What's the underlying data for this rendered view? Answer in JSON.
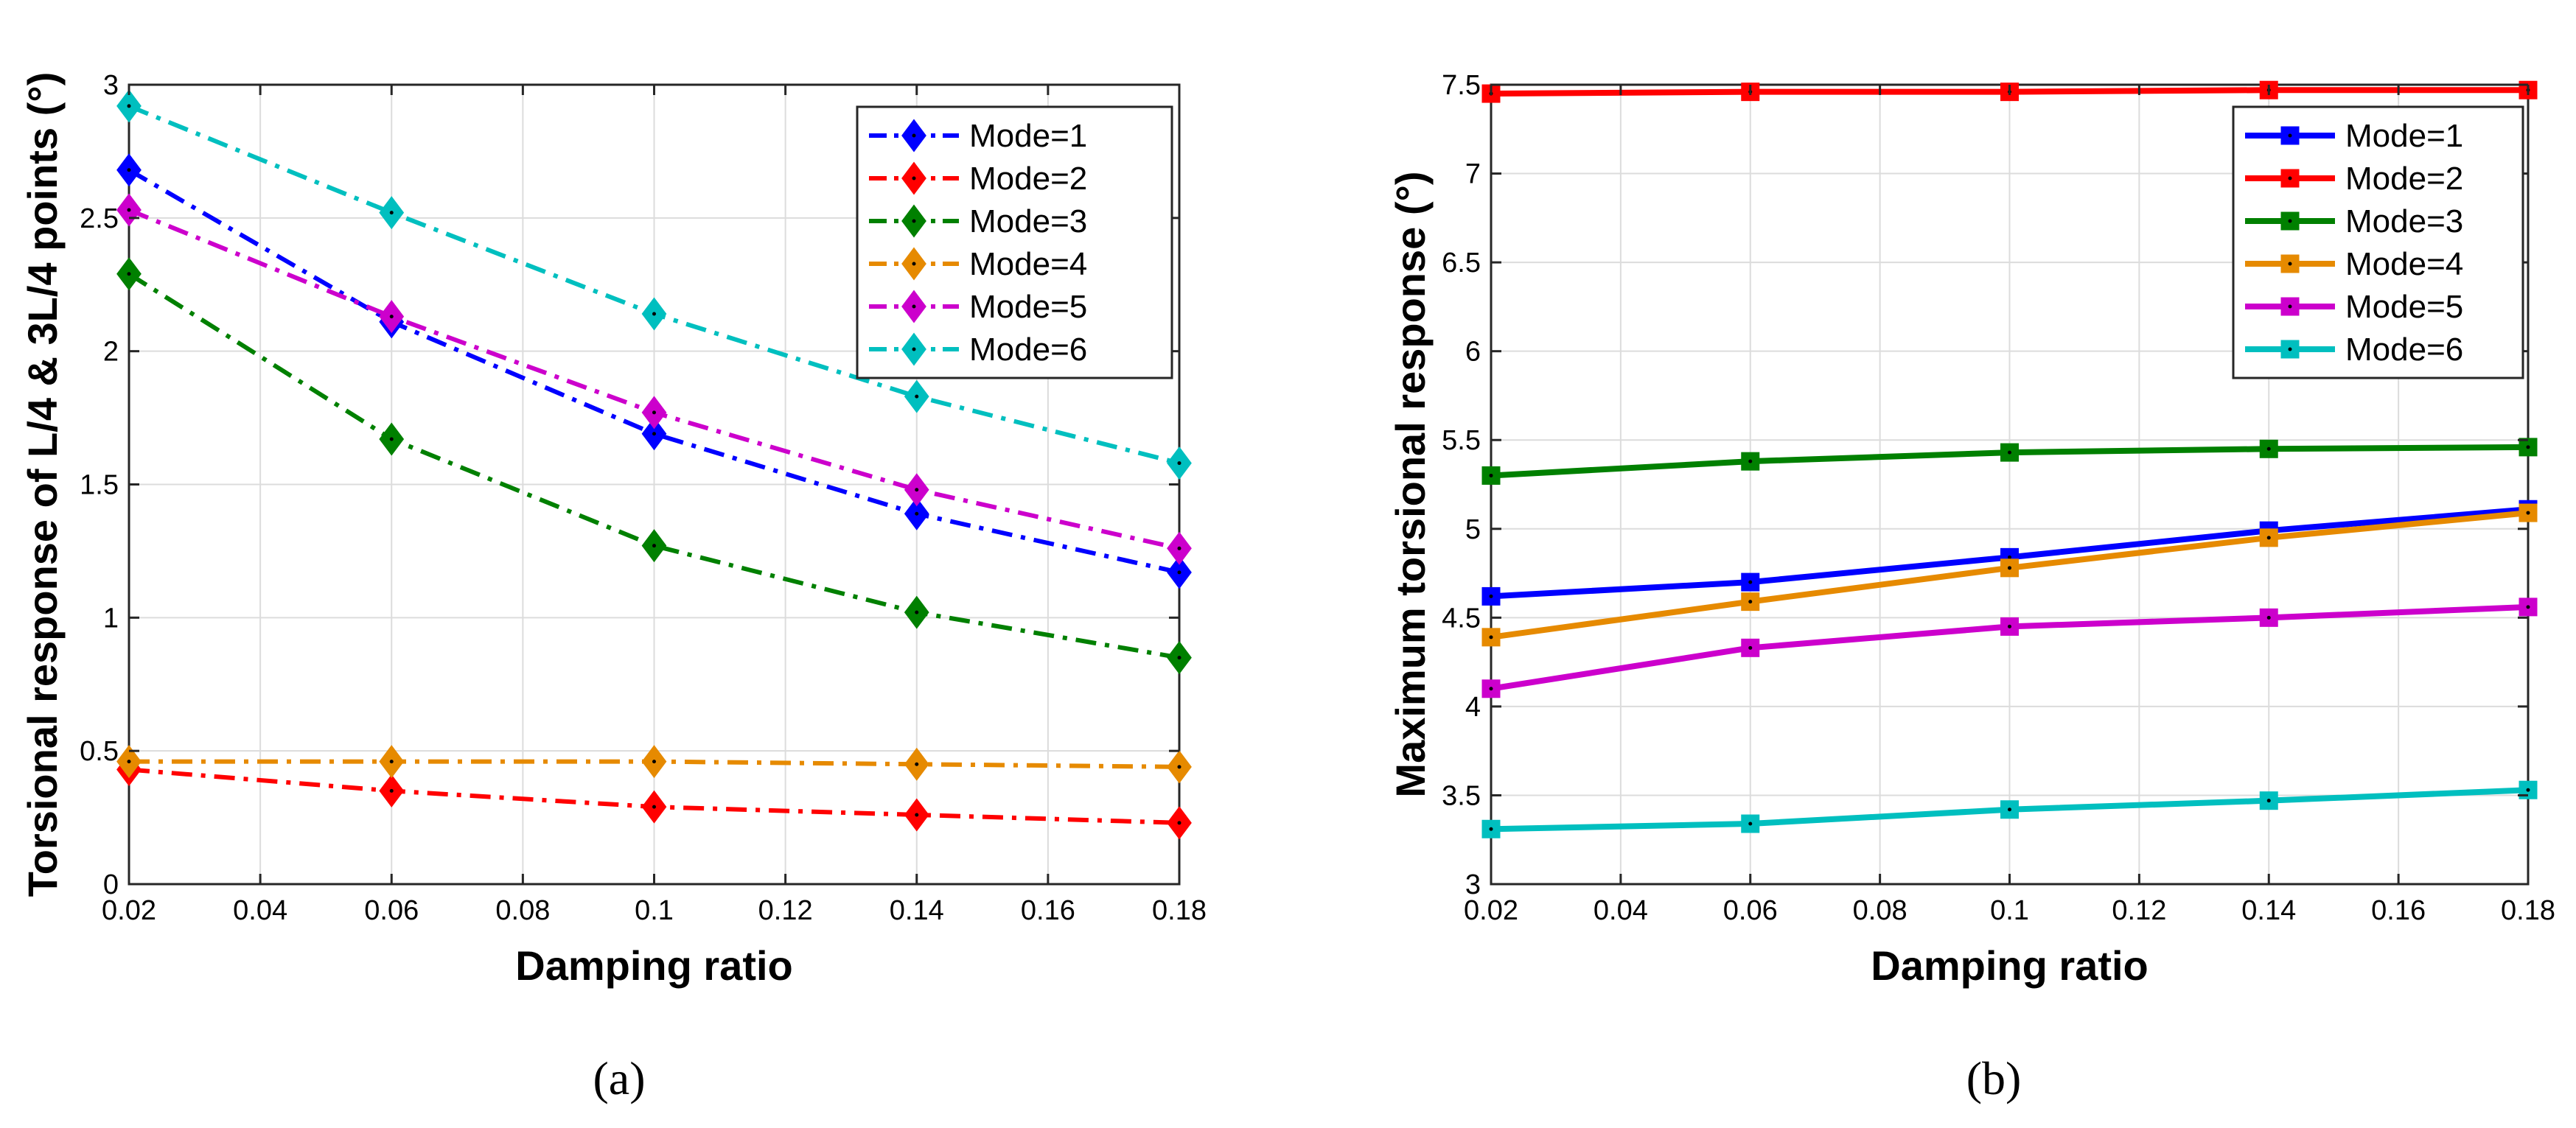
{
  "chart_data": [
    {
      "type": "line",
      "panel": "a",
      "caption": "(a)",
      "xlabel": "Damping ratio",
      "ylabel": "Torsional response of L/4 & 3L/4 points (°)",
      "x": [
        0.02,
        0.06,
        0.1,
        0.14,
        0.18
      ],
      "xlim": [
        0.02,
        0.18
      ],
      "ylim": [
        0,
        3
      ],
      "xticks": [
        0.02,
        0.04,
        0.06,
        0.08,
        0.1,
        0.12,
        0.14,
        0.16,
        0.18
      ],
      "yticks": [
        0,
        0.5,
        1,
        1.5,
        2,
        2.5,
        3
      ],
      "xtick_labels": [
        "0.02",
        "0.04",
        "0.06",
        "0.08",
        "0.1",
        "0.12",
        "0.14",
        "0.16",
        "0.18"
      ],
      "ytick_labels": [
        "0",
        "0.5",
        "1",
        "1.5",
        "2",
        "2.5",
        "3"
      ],
      "grid": true,
      "marker": "diamond",
      "line_style": "dash-dot",
      "legend_position": "top-right",
      "series": [
        {
          "name": "Mode=1",
          "color": "#0000ff",
          "values": [
            2.68,
            2.11,
            1.69,
            1.39,
            1.17
          ]
        },
        {
          "name": "Mode=2",
          "color": "#ff0000",
          "values": [
            0.43,
            0.35,
            0.29,
            0.26,
            0.23
          ]
        },
        {
          "name": "Mode=3",
          "color": "#008000",
          "values": [
            2.29,
            1.67,
            1.27,
            1.02,
            0.85
          ]
        },
        {
          "name": "Mode=4",
          "color": "#e68a00",
          "values": [
            0.46,
            0.46,
            0.46,
            0.45,
            0.44
          ]
        },
        {
          "name": "Mode=5",
          "color": "#cc00cc",
          "values": [
            2.53,
            2.13,
            1.77,
            1.48,
            1.26
          ]
        },
        {
          "name": "Mode=6",
          "color": "#00bfbf",
          "values": [
            2.92,
            2.52,
            2.14,
            1.83,
            1.58
          ]
        }
      ]
    },
    {
      "type": "line",
      "panel": "b",
      "caption": "(b)",
      "xlabel": "Damping ratio",
      "ylabel": "Maximum torsional response (°)",
      "x": [
        0.02,
        0.06,
        0.1,
        0.14,
        0.18
      ],
      "xlim": [
        0.02,
        0.18
      ],
      "ylim": [
        3,
        7.5
      ],
      "xticks": [
        0.02,
        0.04,
        0.06,
        0.08,
        0.1,
        0.12,
        0.14,
        0.16,
        0.18
      ],
      "yticks": [
        3,
        3.5,
        4,
        4.5,
        5,
        5.5,
        6,
        6.5,
        7,
        7.5
      ],
      "xtick_labels": [
        "0.02",
        "0.04",
        "0.06",
        "0.08",
        "0.1",
        "0.12",
        "0.14",
        "0.16",
        "0.18"
      ],
      "ytick_labels": [
        "3",
        "3.5",
        "4",
        "4.5",
        "5",
        "5.5",
        "6",
        "6.5",
        "7",
        "7.5"
      ],
      "grid": true,
      "marker": "square",
      "line_style": "solid",
      "legend_position": "top-right",
      "series": [
        {
          "name": "Mode=1",
          "color": "#0000ff",
          "values": [
            4.62,
            4.7,
            4.84,
            4.99,
            5.11
          ]
        },
        {
          "name": "Mode=2",
          "color": "#ff0000",
          "values": [
            7.45,
            7.46,
            7.46,
            7.47,
            7.47
          ]
        },
        {
          "name": "Mode=3",
          "color": "#008000",
          "values": [
            5.3,
            5.38,
            5.43,
            5.45,
            5.46
          ]
        },
        {
          "name": "Mode=4",
          "color": "#e68a00",
          "values": [
            4.39,
            4.59,
            4.78,
            4.95,
            5.09
          ]
        },
        {
          "name": "Mode=5",
          "color": "#cc00cc",
          "values": [
            4.1,
            4.33,
            4.45,
            4.5,
            4.56
          ]
        },
        {
          "name": "Mode=6",
          "color": "#00bfbf",
          "values": [
            3.31,
            3.34,
            3.42,
            3.47,
            3.53
          ]
        }
      ]
    }
  ]
}
